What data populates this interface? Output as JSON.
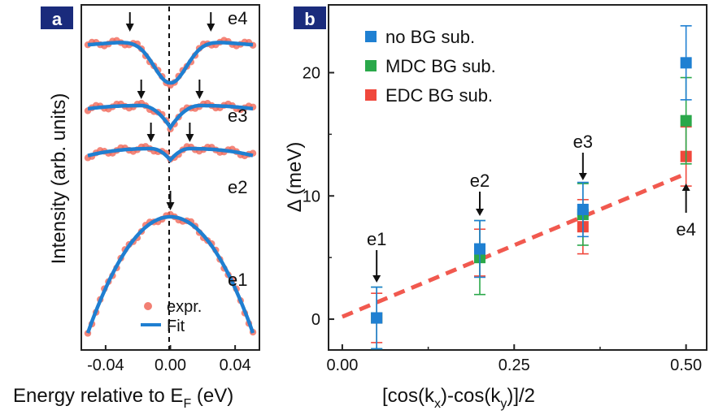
{
  "chart_data": [
    {
      "panel_label": "a",
      "type": "line",
      "xlabel_main": "Energy relative to E",
      "xlabel_sub": "F",
      "xlabel_unit": " (eV)",
      "ylabel": "Intensity (arb. units)",
      "xlim": [
        -0.055,
        0.055
      ],
      "xticks": [
        "-0.04",
        "0.00",
        "0.04"
      ],
      "xtick_values": [
        -0.04,
        0.0,
        0.04
      ],
      "legend": [
        {
          "name": "expr.",
          "color": "#f0695a"
        },
        {
          "name": "Fit",
          "color": "#1f7fd1"
        }
      ],
      "legend_position": "bottom-right",
      "zero_line": "dashed",
      "series": [
        {
          "name": "e4",
          "gap_peaks": [
            -0.025,
            0.025
          ],
          "profile": "dip"
        },
        {
          "name": "e3",
          "gap_peaks": [
            -0.018,
            0.018
          ],
          "profile": "double-peak"
        },
        {
          "name": "e2",
          "gap_peaks": [
            -0.012,
            0.012
          ],
          "profile": "double-peak"
        },
        {
          "name": "e1",
          "gap_peaks": [
            0.0
          ],
          "profile": "single-peak"
        }
      ]
    },
    {
      "panel_label": "b",
      "type": "scatter",
      "xlabel_parts": [
        "[cos(k",
        "x",
        ")-cos(k",
        "y",
        ")]/2"
      ],
      "ylabel": "Δ (meV)",
      "xlim": [
        -0.02,
        0.53
      ],
      "ylim": [
        -2.5,
        25.5
      ],
      "xticks": [
        "0.00",
        "0.25",
        "0.50"
      ],
      "xtick_values": [
        0.0,
        0.25,
        0.5
      ],
      "yticks": [
        "0",
        "10",
        "20"
      ],
      "ytick_values": [
        0,
        10,
        20
      ],
      "legend_position": "top-left",
      "x": [
        0.05,
        0.2,
        0.35,
        0.5
      ],
      "point_labels": [
        "e1",
        "e2",
        "e3",
        "e4"
      ],
      "series": [
        {
          "name": "no BG sub.",
          "color": "#1f80d2",
          "values": [
            0.1,
            5.7,
            8.9,
            20.8
          ],
          "errors": [
            2.5,
            2.3,
            2.2,
            3.0
          ]
        },
        {
          "name": "MDC BG sub.",
          "color": "#2aa84a",
          "values": [
            0.1,
            5.0,
            8.5,
            16.1
          ],
          "errors": [
            2.5,
            3.0,
            2.5,
            3.5
          ]
        },
        {
          "name": "EDC BG sub.",
          "color": "#f0483c",
          "values": [
            0.1,
            5.4,
            7.5,
            13.2
          ],
          "errors": [
            2.0,
            1.9,
            2.2,
            2.4
          ]
        }
      ],
      "fit_line": {
        "style": "dashed",
        "color": "#f0483c",
        "x": [
          0.0,
          0.5
        ],
        "y": [
          0.2,
          11.8
        ]
      }
    }
  ]
}
